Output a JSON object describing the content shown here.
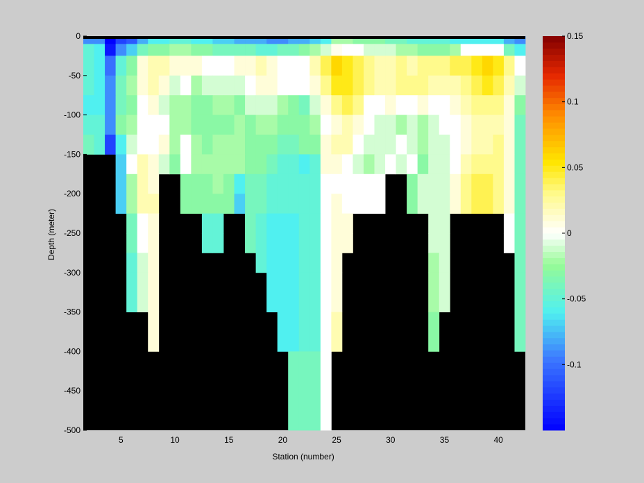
{
  "chart_data": {
    "type": "heatmap",
    "xlabel": "Station (number)",
    "ylabel": "Depth (meter)",
    "xlim": [
      1.5,
      42.5
    ],
    "ylim": [
      -500,
      0
    ],
    "xticks": [
      5,
      10,
      15,
      20,
      25,
      30,
      35,
      40
    ],
    "yticks": [
      0,
      -50,
      -100,
      -150,
      -200,
      -250,
      -300,
      -350,
      -400,
      -450,
      -500
    ],
    "stations": [
      2,
      3,
      4,
      5,
      6,
      7,
      8,
      9,
      10,
      11,
      12,
      13,
      14,
      15,
      16,
      17,
      18,
      19,
      20,
      21,
      22,
      23,
      24,
      25,
      26,
      27,
      28,
      29,
      30,
      31,
      32,
      33,
      34,
      35,
      36,
      37,
      38,
      39,
      40,
      41,
      42
    ],
    "depth_levels": [
      0,
      -10,
      -25,
      -50,
      -75,
      -100,
      -125,
      -150,
      -175,
      -200,
      -225,
      -250,
      -275,
      -300,
      -350,
      -400,
      -500
    ],
    "colorbar": {
      "clim": [
        -0.15,
        0.15
      ],
      "ticks": [
        0.15,
        0.1,
        0.05,
        0,
        -0.05,
        -0.1
      ],
      "tick_labels": [
        "0.15",
        "0.1",
        "0.05",
        "0",
        "-0.05",
        "-0.1"
      ],
      "colormap": "jet-white-center",
      "no_data_color": "#000000"
    },
    "values": [
      [
        -0.09,
        -0.09,
        -0.15,
        -0.12,
        -0.11,
        -0.08,
        -0.06,
        -0.06,
        -0.05,
        -0.05,
        -0.06,
        -0.06,
        -0.07,
        -0.07,
        -0.08,
        -0.08,
        -0.08,
        -0.09,
        -0.09,
        -0.08,
        -0.08,
        -0.07,
        -0.06,
        -0.02,
        -0.02,
        -0.03,
        -0.03,
        -0.03,
        -0.04,
        -0.04,
        -0.05,
        -0.05,
        -0.05,
        -0.05,
        -0.06,
        -0.06,
        -0.06,
        -0.06,
        -0.06,
        -0.08,
        -0.09
      ],
      [
        -0.05,
        -0.06,
        -0.14,
        -0.09,
        -0.07,
        -0.04,
        -0.03,
        -0.03,
        -0.02,
        -0.02,
        -0.03,
        -0.03,
        -0.04,
        -0.04,
        -0.04,
        -0.04,
        -0.05,
        -0.05,
        -0.04,
        -0.04,
        -0.03,
        -0.02,
        -0.01,
        0.005,
        0.0,
        0.0,
        -0.01,
        -0.01,
        -0.01,
        -0.02,
        -0.02,
        -0.03,
        -0.03,
        -0.03,
        -0.02,
        0.0,
        0.0,
        0.0,
        0.0,
        -0.04,
        -0.06
      ],
      [
        -0.05,
        -0.06,
        -0.1,
        -0.05,
        -0.03,
        0.01,
        0.02,
        0.02,
        0.01,
        0.01,
        0.01,
        0.0,
        0.0,
        0.0,
        0.01,
        0.01,
        0.02,
        0.01,
        0.0,
        0.0,
        0.0,
        0.02,
        0.04,
        0.06,
        0.05,
        0.04,
        0.03,
        0.02,
        0.02,
        0.03,
        0.02,
        0.03,
        0.03,
        0.03,
        0.04,
        0.04,
        0.05,
        0.06,
        0.05,
        0.03,
        0.0
      ],
      [
        -0.05,
        -0.06,
        -0.09,
        -0.04,
        -0.02,
        0.01,
        0.02,
        0.01,
        -0.01,
        0.0,
        -0.02,
        -0.01,
        -0.01,
        -0.01,
        -0.01,
        0.0,
        0.01,
        0.01,
        0.0,
        0.0,
        0.0,
        0.01,
        0.03,
        0.05,
        0.05,
        0.04,
        0.03,
        0.02,
        0.02,
        0.03,
        0.03,
        0.03,
        0.02,
        0.02,
        0.02,
        0.03,
        0.04,
        0.05,
        0.04,
        0.02,
        -0.01
      ],
      [
        -0.06,
        -0.06,
        -0.09,
        -0.04,
        -0.03,
        0.0,
        0.01,
        -0.01,
        -0.02,
        -0.02,
        -0.03,
        -0.03,
        -0.02,
        -0.02,
        -0.03,
        -0.01,
        -0.01,
        -0.01,
        -0.02,
        -0.03,
        -0.04,
        -0.01,
        0.01,
        0.03,
        0.04,
        0.03,
        0.0,
        0.0,
        0.01,
        0.0,
        0.0,
        0.01,
        0.0,
        0.0,
        0.01,
        0.02,
        0.03,
        0.03,
        0.03,
        0.01,
        -0.03
      ],
      [
        -0.05,
        -0.05,
        -0.09,
        -0.03,
        -0.02,
        0.0,
        0.0,
        0.0,
        -0.02,
        -0.02,
        -0.03,
        -0.03,
        -0.03,
        -0.03,
        -0.02,
        -0.03,
        -0.02,
        -0.02,
        -0.03,
        -0.03,
        -0.03,
        -0.02,
        0.0,
        0.01,
        0.02,
        0.01,
        0.0,
        -0.01,
        -0.01,
        -0.02,
        -0.01,
        -0.02,
        -0.01,
        0.0,
        0.0,
        0.01,
        0.02,
        0.02,
        0.02,
        0.01,
        -0.04
      ],
      [
        -0.04,
        -0.05,
        -0.12,
        -0.06,
        -0.01,
        0.0,
        0.0,
        0.01,
        -0.02,
        0.0,
        -0.02,
        -0.03,
        -0.02,
        -0.02,
        -0.02,
        -0.03,
        -0.03,
        -0.03,
        -0.04,
        -0.04,
        -0.03,
        -0.03,
        0.01,
        0.02,
        0.02,
        0.0,
        -0.01,
        -0.01,
        -0.01,
        0.0,
        -0.01,
        -0.02,
        -0.01,
        -0.01,
        0.0,
        0.01,
        0.02,
        0.02,
        0.03,
        0.01,
        -0.04
      ],
      [
        null,
        null,
        null,
        -0.07,
        0.0,
        0.02,
        0.01,
        -0.01,
        -0.03,
        0.0,
        -0.02,
        -0.02,
        -0.02,
        -0.02,
        -0.02,
        -0.03,
        -0.03,
        -0.04,
        -0.05,
        -0.05,
        -0.06,
        -0.05,
        0.01,
        0.01,
        0.0,
        -0.01,
        -0.02,
        -0.01,
        0.0,
        -0.01,
        0.0,
        -0.03,
        -0.01,
        -0.01,
        0.0,
        0.02,
        0.03,
        0.03,
        0.03,
        0.01,
        -0.04
      ],
      [
        null,
        null,
        null,
        -0.07,
        -0.02,
        0.02,
        0.01,
        null,
        null,
        -0.03,
        -0.03,
        -0.03,
        -0.02,
        -0.03,
        -0.06,
        -0.04,
        -0.04,
        -0.05,
        -0.05,
        -0.05,
        -0.05,
        -0.05,
        0.0,
        0.0,
        0.0,
        0.0,
        0.0,
        0.0,
        null,
        null,
        -0.03,
        -0.01,
        -0.01,
        -0.01,
        0.01,
        0.03,
        0.04,
        0.04,
        0.03,
        0.01,
        -0.04
      ],
      [
        null,
        null,
        null,
        -0.07,
        -0.02,
        0.02,
        0.02,
        null,
        null,
        -0.03,
        -0.03,
        -0.03,
        -0.03,
        -0.03,
        -0.07,
        -0.04,
        -0.04,
        -0.05,
        -0.05,
        -0.05,
        -0.05,
        -0.05,
        0.0,
        0.01,
        0.0,
        0.0,
        0.0,
        0.0,
        null,
        null,
        -0.03,
        -0.01,
        -0.01,
        -0.01,
        0.01,
        0.03,
        0.04,
        0.04,
        0.03,
        0.01,
        -0.04
      ],
      [
        null,
        null,
        null,
        null,
        -0.04,
        0.0,
        0.01,
        null,
        null,
        null,
        null,
        -0.05,
        -0.05,
        null,
        null,
        -0.04,
        -0.05,
        -0.06,
        -0.06,
        -0.06,
        -0.05,
        -0.05,
        0.0,
        0.01,
        0.01,
        null,
        null,
        null,
        null,
        null,
        null,
        null,
        -0.01,
        -0.01,
        null,
        null,
        null,
        null,
        null,
        0.0,
        -0.04
      ],
      [
        null,
        null,
        null,
        null,
        -0.04,
        0.0,
        0.01,
        null,
        null,
        null,
        null,
        -0.05,
        -0.05,
        null,
        null,
        -0.04,
        -0.05,
        -0.06,
        -0.06,
        -0.06,
        -0.05,
        -0.05,
        0.0,
        0.01,
        0.01,
        null,
        null,
        null,
        null,
        null,
        null,
        null,
        -0.01,
        -0.01,
        null,
        null,
        null,
        null,
        null,
        0.0,
        -0.04
      ],
      [
        null,
        null,
        null,
        null,
        -0.05,
        -0.01,
        0.01,
        null,
        null,
        null,
        null,
        null,
        null,
        null,
        null,
        null,
        -0.05,
        -0.06,
        -0.06,
        -0.06,
        -0.05,
        -0.05,
        0.0,
        0.01,
        null,
        null,
        null,
        null,
        null,
        null,
        null,
        null,
        -0.02,
        -0.01,
        null,
        null,
        null,
        null,
        null,
        null,
        -0.04
      ],
      [
        null,
        null,
        null,
        null,
        -0.05,
        -0.01,
        0.01,
        null,
        null,
        null,
        null,
        null,
        null,
        null,
        null,
        null,
        null,
        -0.06,
        -0.06,
        -0.06,
        -0.05,
        -0.05,
        0.0,
        0.01,
        null,
        null,
        null,
        null,
        null,
        null,
        null,
        null,
        -0.02,
        -0.01,
        null,
        null,
        null,
        null,
        null,
        null,
        -0.04
      ],
      [
        null,
        null,
        null,
        null,
        null,
        null,
        0.01,
        null,
        null,
        null,
        null,
        null,
        null,
        null,
        null,
        null,
        null,
        null,
        -0.06,
        -0.06,
        -0.05,
        -0.05,
        0.0,
        0.02,
        null,
        null,
        null,
        null,
        null,
        null,
        null,
        null,
        -0.03,
        null,
        null,
        null,
        null,
        null,
        null,
        null,
        -0.04
      ],
      [
        null,
        null,
        null,
        null,
        null,
        null,
        null,
        null,
        null,
        null,
        null,
        null,
        null,
        null,
        null,
        null,
        null,
        null,
        null,
        -0.04,
        -0.04,
        -0.04,
        0.0,
        null,
        null,
        null,
        null,
        null,
        null,
        null,
        null,
        null,
        null,
        null,
        null,
        null,
        null,
        null,
        null,
        null,
        null
      ]
    ]
  }
}
